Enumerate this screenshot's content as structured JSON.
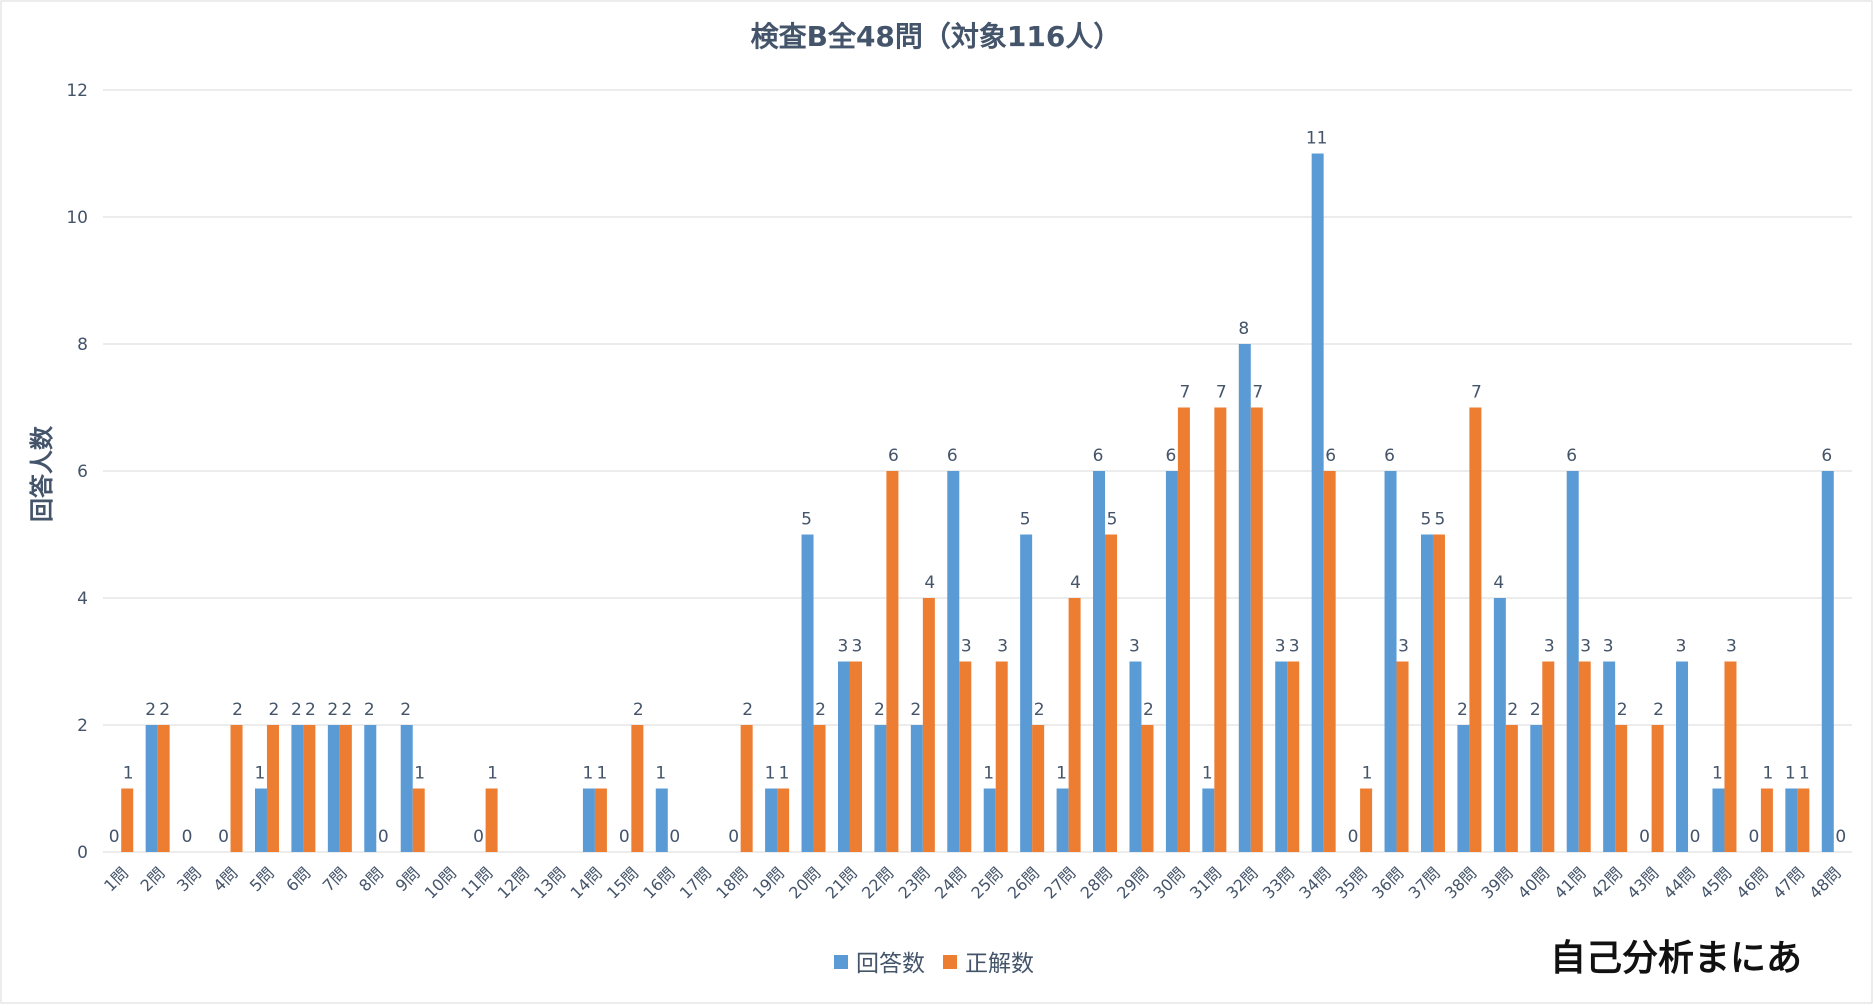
{
  "chart_data": {
    "type": "bar",
    "title": "検査B全48問（対象116人）",
    "ylabel": "回答人数",
    "xlabel": "",
    "ylim": [
      0,
      12
    ],
    "yticks": [
      0,
      2,
      4,
      6,
      8,
      10,
      12
    ],
    "grid": true,
    "legend_position": "bottom",
    "categories": [
      "1問",
      "2問",
      "3問",
      "4問",
      "5問",
      "6問",
      "7問",
      "8問",
      "9問",
      "10問",
      "11問",
      "12問",
      "13問",
      "14問",
      "15問",
      "16問",
      "17問",
      "18問",
      "19問",
      "20問",
      "21問",
      "22問",
      "23問",
      "24問",
      "25問",
      "26問",
      "27問",
      "28問",
      "29問",
      "30問",
      "31問",
      "32問",
      "33問",
      "34問",
      "35問",
      "36問",
      "37問",
      "38問",
      "39問",
      "40問",
      "41問",
      "42問",
      "43問",
      "44問",
      "45問",
      "46問",
      "47問",
      "48問"
    ],
    "series": [
      {
        "name": "回答数",
        "color": "#5b9bd5",
        "values": [
          0,
          2,
          0,
          0,
          1,
          2,
          2,
          2,
          2,
          null,
          0,
          null,
          null,
          1,
          0,
          1,
          null,
          0,
          1,
          5,
          3,
          2,
          2,
          6,
          1,
          5,
          1,
          6,
          3,
          6,
          1,
          8,
          3,
          11,
          0,
          6,
          5,
          2,
          4,
          2,
          6,
          3,
          0,
          3,
          1,
          0,
          1,
          6
        ]
      },
      {
        "name": "正解数",
        "color": "#ed7d31",
        "values": [
          1,
          2,
          null,
          2,
          2,
          2,
          2,
          0,
          1,
          null,
          1,
          null,
          null,
          1,
          2,
          0,
          null,
          2,
          1,
          2,
          3,
          6,
          4,
          3,
          3,
          2,
          4,
          5,
          2,
          7,
          7,
          7,
          3,
          6,
          1,
          3,
          5,
          7,
          2,
          3,
          3,
          2,
          2,
          0,
          3,
          1,
          1,
          0
        ]
      }
    ]
  },
  "watermark": {
    "text": "自己分析まにあ"
  }
}
